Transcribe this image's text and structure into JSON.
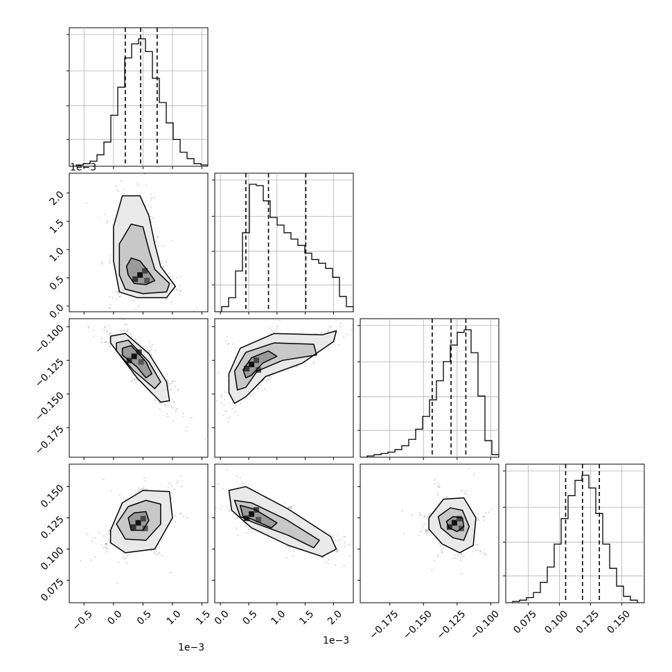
{
  "chart_data": {
    "type": "corner",
    "title": "",
    "parameters": [
      {
        "name": "",
        "scale_label": "1e−3",
        "range": [
          -0.75,
          1.6
        ],
        "ticks": [
          -0.5,
          0.0,
          0.5,
          1.0,
          1.5
        ],
        "tick_labels": [
          "−0.5",
          "0.0",
          "0.5",
          "1.0",
          "1.5"
        ],
        "quantiles": [
          0.2,
          0.46,
          0.74
        ]
      },
      {
        "name": "",
        "scale_label": "1e−3",
        "range": [
          -0.1,
          2.35
        ],
        "ticks": [
          0.0,
          0.5,
          1.0,
          1.5,
          2.0
        ],
        "tick_labels": [
          "0.0",
          "0.5",
          "1.0",
          "1.5",
          "2.0"
        ],
        "quantiles": [
          0.45,
          0.85,
          1.51
        ]
      },
      {
        "name": "",
        "scale_label": "",
        "range": [
          -0.197,
          -0.094
        ],
        "ticks": [
          -0.175,
          -0.15,
          -0.125,
          -0.1
        ],
        "tick_labels": [
          "−0.175",
          "−0.150",
          "−0.125",
          "−0.100"
        ],
        "quantiles": [
          -0.1435,
          -0.1295,
          -0.1185
        ]
      },
      {
        "name": "",
        "scale_label": "",
        "range": [
          0.057,
          0.168
        ],
        "ticks": [
          0.075,
          0.1,
          0.125,
          0.15
        ],
        "tick_labels": [
          "0.075",
          "0.100",
          "0.125",
          "0.150"
        ],
        "quantiles": [
          0.105,
          0.1185,
          0.132
        ]
      }
    ],
    "histograms": [
      {
        "param": 0,
        "bin_edges_start": -0.75,
        "bin_width": 0.1175,
        "counts": [
          0.0,
          0.01,
          0.02,
          0.04,
          0.09,
          0.19,
          0.4,
          0.62,
          0.85,
          0.96,
          1.0,
          0.9,
          0.69,
          0.5,
          0.34,
          0.21,
          0.11,
          0.06,
          0.02,
          0.01
        ]
      },
      {
        "param": 1,
        "bin_edges_start": -0.1,
        "bin_width": 0.1225,
        "counts": [
          0.0,
          0.04,
          0.11,
          0.32,
          0.62,
          1.0,
          0.99,
          0.87,
          0.74,
          0.68,
          0.62,
          0.57,
          0.52,
          0.46,
          0.41,
          0.38,
          0.34,
          0.27,
          0.12,
          0.04
        ]
      },
      {
        "param": 2,
        "bin_edges_start": -0.197,
        "bin_width": 0.00515,
        "counts": [
          0.0,
          0.01,
          0.02,
          0.03,
          0.04,
          0.06,
          0.09,
          0.14,
          0.22,
          0.32,
          0.45,
          0.6,
          0.75,
          0.88,
          0.98,
          1.0,
          0.82,
          0.48,
          0.13,
          0.02
        ]
      },
      {
        "param": 3,
        "bin_edges_start": 0.057,
        "bin_width": 0.00555,
        "counts": [
          0.0,
          0.01,
          0.02,
          0.04,
          0.08,
          0.16,
          0.28,
          0.46,
          0.66,
          0.84,
          0.96,
          1.0,
          0.9,
          0.7,
          0.46,
          0.27,
          0.13,
          0.05,
          0.02,
          0.0
        ]
      }
    ],
    "pairs": [
      {
        "x": 0,
        "y": 1,
        "peak": [
          0.45,
          0.55
        ],
        "contours": [
          [
            [
              0.25,
              0.55
            ],
            [
              0.35,
              0.4
            ],
            [
              0.55,
              0.38
            ],
            [
              0.7,
              0.45
            ],
            [
              0.6,
              0.6
            ],
            [
              0.45,
              0.8
            ],
            [
              0.3,
              0.85
            ],
            [
              0.22,
              0.7
            ]
          ],
          [
            [
              0.1,
              0.55
            ],
            [
              0.2,
              0.3
            ],
            [
              0.5,
              0.22
            ],
            [
              0.9,
              0.25
            ],
            [
              0.95,
              0.4
            ],
            [
              0.7,
              0.65
            ],
            [
              0.6,
              1.0
            ],
            [
              0.5,
              1.4
            ],
            [
              0.3,
              1.45
            ],
            [
              0.1,
              1.1
            ]
          ],
          [
            [
              0.0,
              0.8
            ],
            [
              0.1,
              0.25
            ],
            [
              0.4,
              0.15
            ],
            [
              0.9,
              0.15
            ],
            [
              1.05,
              0.35
            ],
            [
              0.8,
              0.7
            ],
            [
              0.7,
              1.1
            ],
            [
              0.6,
              1.6
            ],
            [
              0.45,
              1.95
            ],
            [
              0.15,
              1.95
            ],
            [
              0.0,
              1.4
            ]
          ]
        ]
      },
      {
        "x": 0,
        "y": 2,
        "peak": [
          0.35,
          -0.122
        ],
        "contours": [
          [
            [
              0.15,
              -0.116
            ],
            [
              0.3,
              -0.114
            ],
            [
              0.55,
              -0.126
            ],
            [
              0.65,
              -0.135
            ],
            [
              0.55,
              -0.138
            ],
            [
              0.4,
              -0.13
            ],
            [
              0.15,
              -0.121
            ]
          ],
          [
            [
              0.05,
              -0.112
            ],
            [
              0.25,
              -0.11
            ],
            [
              0.6,
              -0.126
            ],
            [
              0.8,
              -0.141
            ],
            [
              0.7,
              -0.146
            ],
            [
              0.35,
              -0.133
            ],
            [
              0.05,
              -0.118
            ]
          ],
          [
            [
              -0.05,
              -0.107
            ],
            [
              0.2,
              -0.105
            ],
            [
              0.6,
              -0.12
            ],
            [
              0.9,
              -0.141
            ],
            [
              0.95,
              -0.155
            ],
            [
              0.8,
              -0.156
            ],
            [
              0.4,
              -0.138
            ],
            [
              -0.05,
              -0.112
            ]
          ]
        ]
      },
      {
        "x": 0,
        "y": 3,
        "peak": [
          0.42,
          0.121
        ],
        "contours": [
          [
            [
              0.25,
              0.125
            ],
            [
              0.35,
              0.129
            ],
            [
              0.55,
              0.13
            ],
            [
              0.6,
              0.123
            ],
            [
              0.5,
              0.115
            ],
            [
              0.3,
              0.115
            ]
          ],
          [
            [
              0.05,
              0.12
            ],
            [
              0.25,
              0.134
            ],
            [
              0.55,
              0.139
            ],
            [
              0.8,
              0.136
            ],
            [
              0.8,
              0.12
            ],
            [
              0.55,
              0.107
            ],
            [
              0.2,
              0.108
            ]
          ],
          [
            [
              -0.05,
              0.115
            ],
            [
              0.15,
              0.137
            ],
            [
              0.5,
              0.147
            ],
            [
              0.95,
              0.146
            ],
            [
              1.0,
              0.125
            ],
            [
              0.7,
              0.1
            ],
            [
              0.2,
              0.097
            ],
            [
              -0.05,
              0.105
            ]
          ]
        ]
      },
      {
        "x": 1,
        "y": 2,
        "peak": [
          0.55,
          -0.128
        ],
        "contours": [
          [
            [
              0.4,
              -0.132
            ],
            [
              0.55,
              -0.123
            ],
            [
              0.85,
              -0.118
            ],
            [
              1.0,
              -0.122
            ],
            [
              0.75,
              -0.127
            ],
            [
              0.55,
              -0.136
            ],
            [
              0.45,
              -0.138
            ]
          ],
          [
            [
              0.25,
              -0.133
            ],
            [
              0.45,
              -0.119
            ],
            [
              0.95,
              -0.112
            ],
            [
              1.65,
              -0.113
            ],
            [
              1.7,
              -0.121
            ],
            [
              1.1,
              -0.125
            ],
            [
              0.65,
              -0.133
            ],
            [
              0.45,
              -0.145
            ],
            [
              0.3,
              -0.147
            ]
          ],
          [
            [
              0.15,
              -0.135
            ],
            [
              0.35,
              -0.116
            ],
            [
              0.95,
              -0.105
            ],
            [
              1.8,
              -0.106
            ],
            [
              2.05,
              -0.103
            ],
            [
              2.0,
              -0.111
            ],
            [
              1.45,
              -0.127
            ],
            [
              0.8,
              -0.137
            ],
            [
              0.45,
              -0.152
            ],
            [
              0.25,
              -0.157
            ],
            [
              0.15,
              -0.149
            ]
          ]
        ]
      },
      {
        "x": 1,
        "y": 3,
        "peak": [
          0.55,
          0.128
        ],
        "contours": [
          [
            [
              0.35,
              0.135
            ],
            [
              0.6,
              0.132
            ],
            [
              1.0,
              0.121
            ],
            [
              0.9,
              0.117
            ],
            [
              0.55,
              0.124
            ],
            [
              0.4,
              0.126
            ]
          ],
          [
            [
              0.25,
              0.139
            ],
            [
              0.55,
              0.137
            ],
            [
              1.15,
              0.124
            ],
            [
              1.75,
              0.107
            ],
            [
              1.65,
              0.101
            ],
            [
              1.2,
              0.111
            ],
            [
              0.6,
              0.121
            ],
            [
              0.35,
              0.126
            ]
          ],
          [
            [
              0.15,
              0.147
            ],
            [
              0.45,
              0.15
            ],
            [
              1.2,
              0.132
            ],
            [
              1.95,
              0.11
            ],
            [
              2.05,
              0.1
            ],
            [
              1.8,
              0.094
            ],
            [
              1.2,
              0.103
            ],
            [
              0.55,
              0.117
            ],
            [
              0.2,
              0.131
            ]
          ]
        ]
      },
      {
        "x": 2,
        "y": 3,
        "peak": [
          -0.127,
          0.121
        ],
        "contours": [
          [
            [
              -0.133,
              0.122
            ],
            [
              -0.128,
              0.126
            ],
            [
              -0.121,
              0.125
            ],
            [
              -0.12,
              0.118
            ],
            [
              -0.125,
              0.114
            ],
            [
              -0.131,
              0.117
            ]
          ],
          [
            [
              -0.139,
              0.126
            ],
            [
              -0.13,
              0.133
            ],
            [
              -0.121,
              0.131
            ],
            [
              -0.116,
              0.118
            ],
            [
              -0.12,
              0.107
            ],
            [
              -0.128,
              0.109
            ],
            [
              -0.137,
              0.117
            ]
          ],
          [
            [
              -0.146,
              0.125
            ],
            [
              -0.135,
              0.14
            ],
            [
              -0.12,
              0.141
            ],
            [
              -0.111,
              0.125
            ],
            [
              -0.113,
              0.103
            ],
            [
              -0.123,
              0.097
            ],
            [
              -0.136,
              0.104
            ],
            [
              -0.146,
              0.116
            ]
          ]
        ]
      }
    ]
  }
}
